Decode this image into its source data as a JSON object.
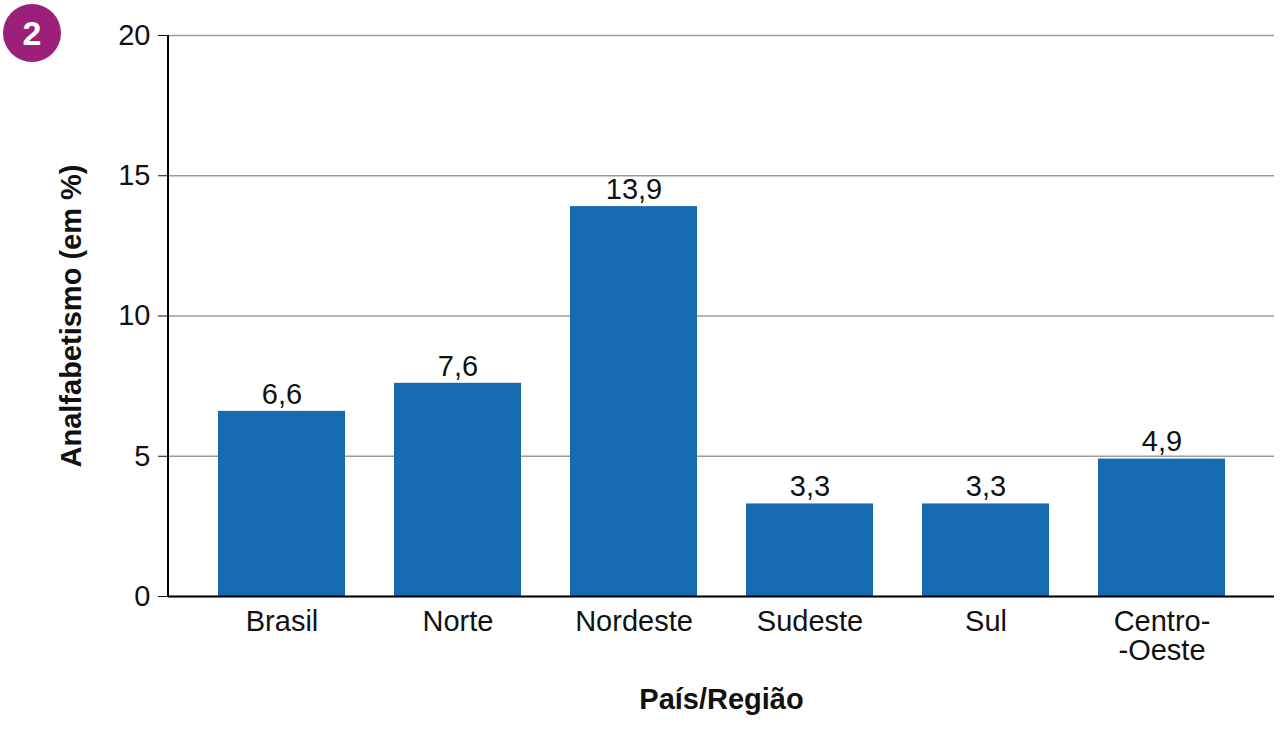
{
  "chart_data": {
    "type": "bar",
    "annotations": [
      "2"
    ],
    "x_label": "País/Região",
    "y_label": "Analfabetismo (em %)",
    "categories": [
      "Brasil",
      "Norte",
      "Nordeste",
      "Sudeste",
      "Sul",
      "Centro-\n-Oeste"
    ],
    "values": [
      6.6,
      7.6,
      13.9,
      3.3,
      3.3,
      4.9
    ],
    "value_labels": [
      "6,6",
      "7,6",
      "13,9",
      "3,3",
      "3,3",
      "4,9"
    ],
    "color": "#1769b0",
    "ylim": [
      0,
      20
    ],
    "yticks": [
      0,
      5,
      10,
      15,
      20
    ],
    "grid": true,
    "data_labels": true
  }
}
